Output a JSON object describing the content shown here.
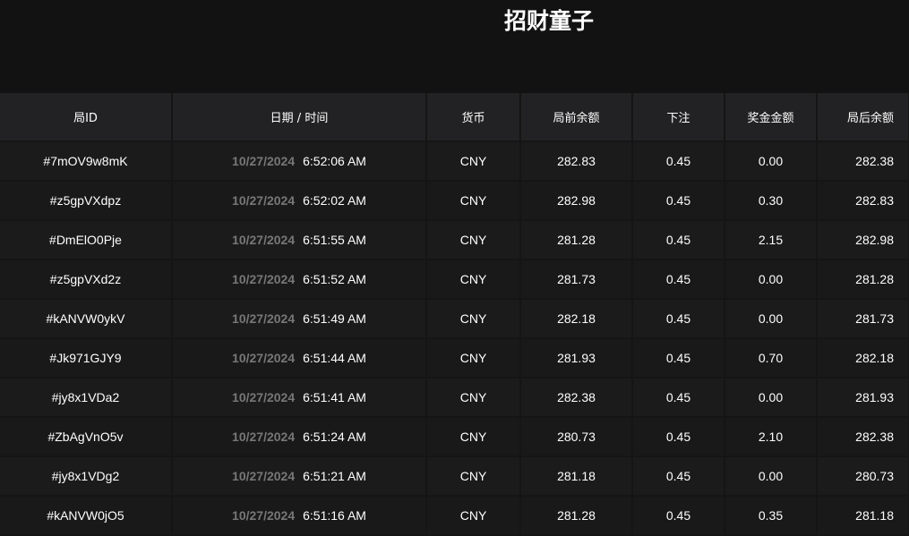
{
  "title": "招财童子",
  "columns": [
    "局ID",
    "日期 / 时间",
    "货币",
    "局前余额",
    "下注",
    "奖金金额",
    "局后余额"
  ],
  "rows": [
    {
      "id": "#7mOV9w8mK",
      "date": "10/27/2024",
      "time": "6:52:06 AM",
      "currency": "CNY",
      "before": "282.83",
      "bet": "0.45",
      "win": "0.00",
      "after": "282.38"
    },
    {
      "id": "#z5gpVXdpz",
      "date": "10/27/2024",
      "time": "6:52:02 AM",
      "currency": "CNY",
      "before": "282.98",
      "bet": "0.45",
      "win": "0.30",
      "after": "282.83"
    },
    {
      "id": "#DmElO0Pje",
      "date": "10/27/2024",
      "time": "6:51:55 AM",
      "currency": "CNY",
      "before": "281.28",
      "bet": "0.45",
      "win": "2.15",
      "after": "282.98"
    },
    {
      "id": "#z5gpVXd2z",
      "date": "10/27/2024",
      "time": "6:51:52 AM",
      "currency": "CNY",
      "before": "281.73",
      "bet": "0.45",
      "win": "0.00",
      "after": "281.28"
    },
    {
      "id": "#kANVW0ykV",
      "date": "10/27/2024",
      "time": "6:51:49 AM",
      "currency": "CNY",
      "before": "282.18",
      "bet": "0.45",
      "win": "0.00",
      "after": "281.73"
    },
    {
      "id": "#Jk971GJY9",
      "date": "10/27/2024",
      "time": "6:51:44 AM",
      "currency": "CNY",
      "before": "281.93",
      "bet": "0.45",
      "win": "0.70",
      "after": "282.18"
    },
    {
      "id": "#jy8x1VDa2",
      "date": "10/27/2024",
      "time": "6:51:41 AM",
      "currency": "CNY",
      "before": "282.38",
      "bet": "0.45",
      "win": "0.00",
      "after": "281.93"
    },
    {
      "id": "#ZbAgVnO5v",
      "date": "10/27/2024",
      "time": "6:51:24 AM",
      "currency": "CNY",
      "before": "280.73",
      "bet": "0.45",
      "win": "2.10",
      "after": "282.38"
    },
    {
      "id": "#jy8x1VDg2",
      "date": "10/27/2024",
      "time": "6:51:21 AM",
      "currency": "CNY",
      "before": "281.18",
      "bet": "0.45",
      "win": "0.00",
      "after": "280.73"
    },
    {
      "id": "#kANVW0jO5",
      "date": "10/27/2024",
      "time": "6:51:16 AM",
      "currency": "CNY",
      "before": "281.28",
      "bet": "0.45",
      "win": "0.35",
      "after": "281.18"
    }
  ]
}
